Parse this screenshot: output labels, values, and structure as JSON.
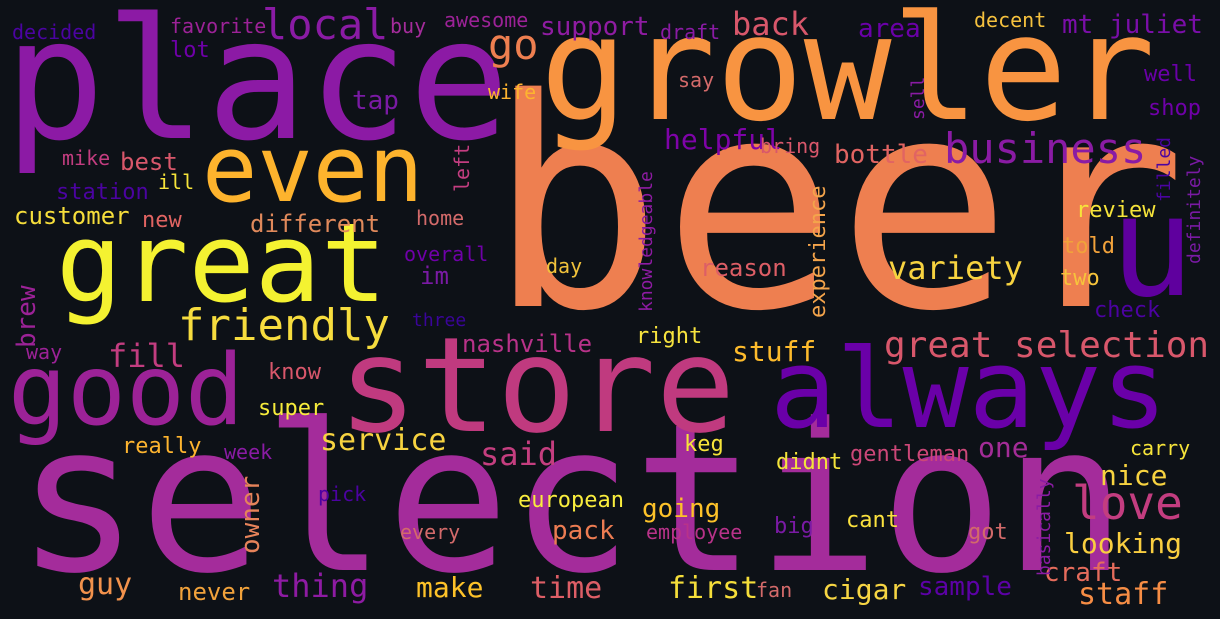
{
  "words": [
    {
      "text": "beer",
      "color": "#ee7f50"
    },
    {
      "text": "selection",
      "color": "#a42c9b"
    },
    {
      "text": "place",
      "color": "#8c1aa5"
    },
    {
      "text": "growler",
      "color": "#f89441"
    },
    {
      "text": "store",
      "color": "#c03a7f"
    },
    {
      "text": "great",
      "color": "#f4f231"
    },
    {
      "text": "always",
      "color": "#6a00a8"
    },
    {
      "text": "good",
      "color": "#9c2297"
    },
    {
      "text": "even",
      "color": "#fdb32d"
    },
    {
      "text": "u",
      "color": "#5f009e"
    },
    {
      "text": "friendly",
      "color": "#f6dc3e"
    },
    {
      "text": "business",
      "color": "#8a1ba4"
    },
    {
      "text": "great selection",
      "color": "#d8576b"
    },
    {
      "text": "love",
      "color": "#c33d80"
    },
    {
      "text": "local",
      "color": "#8a1ba4"
    },
    {
      "text": "go",
      "color": "#ee7f50"
    },
    {
      "text": "back",
      "color": "#d8576b"
    },
    {
      "text": "variety",
      "color": "#f7d340"
    },
    {
      "text": "said",
      "color": "#c43e7f"
    },
    {
      "text": "service",
      "color": "#f7d340"
    },
    {
      "text": "fill",
      "color": "#c33d80"
    },
    {
      "text": "stuff",
      "color": "#fdbb2c"
    },
    {
      "text": "thing",
      "color": "#8e1ba3"
    },
    {
      "text": "time",
      "color": "#dd5e66"
    },
    {
      "text": "first",
      "color": "#f5de3a"
    },
    {
      "text": "make",
      "color": "#fdc229"
    },
    {
      "text": "staff",
      "color": "#f68d45"
    },
    {
      "text": "craft",
      "color": "#e66c5c"
    },
    {
      "text": "looking",
      "color": "#f9ce40"
    },
    {
      "text": "nice",
      "color": "#f7d340"
    },
    {
      "text": "one",
      "color": "#a32c97"
    },
    {
      "text": "guy",
      "color": "#f2924c"
    },
    {
      "text": "cigar",
      "color": "#f6d543"
    },
    {
      "text": "sample",
      "color": "#5c01a6"
    },
    {
      "text": "helpful",
      "color": "#7e03a8"
    },
    {
      "text": "bottle",
      "color": "#e16462"
    },
    {
      "text": "mt juliet",
      "color": "#7a0ea8"
    },
    {
      "text": "support",
      "color": "#8f1ca2"
    },
    {
      "text": "area",
      "color": "#6a00a8"
    },
    {
      "text": "customer",
      "color": "#f6de3b"
    },
    {
      "text": "different",
      "color": "#e0895b"
    },
    {
      "text": "reason",
      "color": "#dd5e66"
    },
    {
      "text": "tap",
      "color": "#7a1aa4"
    },
    {
      "text": "brew",
      "color": "#9c2297"
    },
    {
      "text": "owner",
      "color": "#e6835a"
    },
    {
      "text": "pack",
      "color": "#ec7c52"
    },
    {
      "text": "going",
      "color": "#fdc229"
    },
    {
      "text": "nashville",
      "color": "#b83289"
    },
    {
      "text": "im",
      "color": "#7a1aa4"
    },
    {
      "text": "review",
      "color": "#f6e43a"
    },
    {
      "text": "told",
      "color": "#f1a23b"
    },
    {
      "text": "two",
      "color": "#f7c43b"
    },
    {
      "text": "check",
      "color": "#4c02a1"
    },
    {
      "text": "well",
      "color": "#6a00a8"
    },
    {
      "text": "shop",
      "color": "#6f00a8"
    },
    {
      "text": "best",
      "color": "#d8576b"
    },
    {
      "text": "station",
      "color": "#4b03a1"
    },
    {
      "text": "new",
      "color": "#e16462"
    },
    {
      "text": "home",
      "color": "#d36a6a"
    },
    {
      "text": "experience",
      "color": "#f4a44b"
    },
    {
      "text": "gentleman",
      "color": "#cc4778"
    },
    {
      "text": "didnt",
      "color": "#f3e43a"
    },
    {
      "text": "keg",
      "color": "#f6e43a"
    },
    {
      "text": "really",
      "color": "#fdb42f"
    },
    {
      "text": "super",
      "color": "#f6ec3b"
    },
    {
      "text": "never",
      "color": "#f1a23b"
    },
    {
      "text": "know",
      "color": "#d8576b"
    },
    {
      "text": "way",
      "color": "#9c2297"
    },
    {
      "text": "right",
      "color": "#f7e33e"
    },
    {
      "text": "european",
      "color": "#f9ed3d"
    },
    {
      "text": "employee",
      "color": "#b83289"
    },
    {
      "text": "big",
      "color": "#7a1aa4"
    },
    {
      "text": "cant",
      "color": "#fbe23e"
    },
    {
      "text": "got",
      "color": "#d36a6a"
    },
    {
      "text": "carry",
      "color": "#f6e43a"
    },
    {
      "text": "fan",
      "color": "#d36a6a"
    },
    {
      "text": "every",
      "color": "#d36a6a"
    },
    {
      "text": "week",
      "color": "#8a1ba4"
    },
    {
      "text": "pick",
      "color": "#4c02a1"
    },
    {
      "text": "day",
      "color": "#f1c23b"
    },
    {
      "text": "overall",
      "color": "#6f00a8"
    },
    {
      "text": "three",
      "color": "#3a049a"
    },
    {
      "text": "left",
      "color": "#c33d80"
    },
    {
      "text": "knowledgeable",
      "color": "#8e1ba3"
    },
    {
      "text": "ill",
      "color": "#f6e43a"
    },
    {
      "text": "mike",
      "color": "#c33d80"
    },
    {
      "text": "bring",
      "color": "#d8576b"
    },
    {
      "text": "say",
      "color": "#d36a6a"
    },
    {
      "text": "wife",
      "color": "#fdb42f"
    },
    {
      "text": "lot",
      "color": "#6f00a8"
    },
    {
      "text": "favorite",
      "color": "#9c2297"
    },
    {
      "text": "buy",
      "color": "#a42c9b"
    },
    {
      "text": "awesome",
      "color": "#9c2297"
    },
    {
      "text": "draft",
      "color": "#8a1ba4"
    },
    {
      "text": "decent",
      "color": "#f5c13e"
    },
    {
      "text": "decided",
      "color": "#4b03a1"
    },
    {
      "text": "sell",
      "color": "#8a1ba4"
    },
    {
      "text": "filled",
      "color": "#4b03a1"
    },
    {
      "text": "definitely",
      "color": "#7a1aa4"
    },
    {
      "text": "basically",
      "color": "#8a1ba4"
    }
  ]
}
